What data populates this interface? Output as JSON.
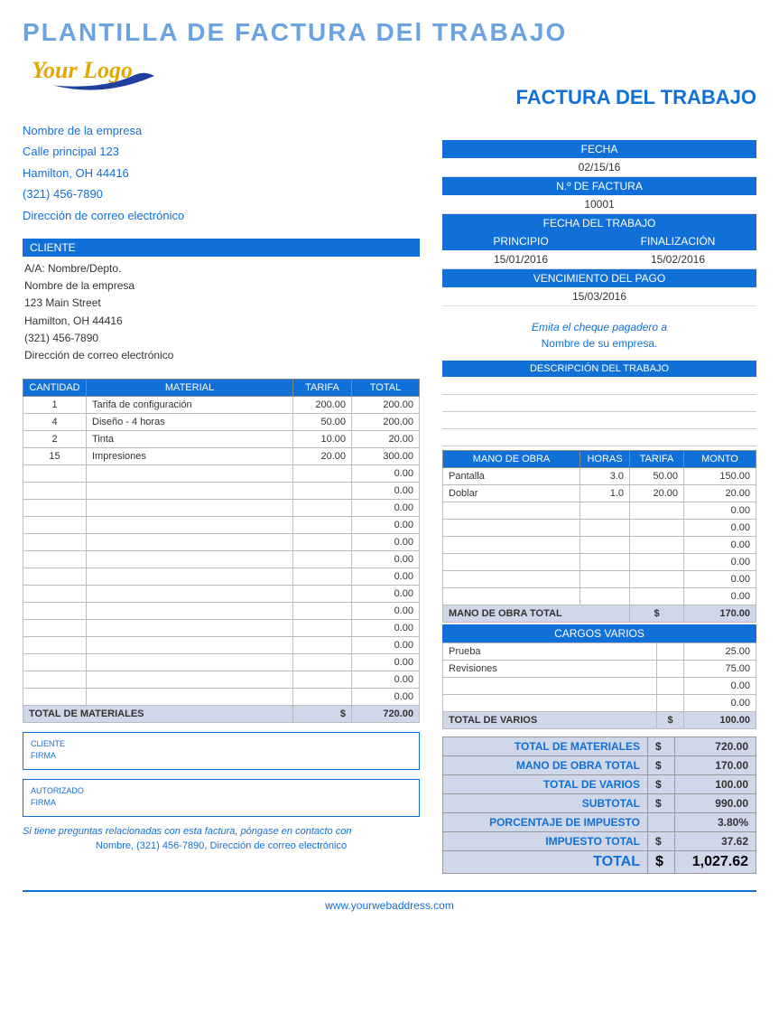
{
  "title": "PLANTILLA DE FACTURA DEl TRABAJO",
  "logo": "Your Logo",
  "invoiceHeading": "FACTURA DEL TRABAJO",
  "company": {
    "name": "Nombre de la empresa",
    "street": "Calle principal 123",
    "cityzip": "Hamilton, OH 44416",
    "phone": "(321) 456-7890",
    "email": "Dirección de correo electrónico"
  },
  "headers": {
    "cliente": "CLIENTE",
    "fecha": "FECHA",
    "nfactura": "N.º DE FACTURA",
    "fechaTrabajo": "FECHA DEL TRABAJO",
    "principio": "PRINCIPIO",
    "finalizacion": "FINALIZACIÓN",
    "vencimiento": "VENCIMIENTO DEL PAGO",
    "descTrabajo": "DESCRIPCIÓN DEL TRABAJO",
    "manoObra": "MANO DE OBRA",
    "horas": "HORAS",
    "tarifa": "TARIFA",
    "monto": "MONTO",
    "cargosVarios": "CARGOS VARIOS",
    "cantidad": "CANTIDAD",
    "material": "MATERIAL",
    "total": "TOTAL"
  },
  "meta": {
    "fecha": "02/15/16",
    "nfactura": "10001",
    "principio": "15/01/2016",
    "finalizacion": "15/02/2016",
    "vencimiento": "15/03/2016"
  },
  "client": {
    "attn": "A/A: Nombre/Depto.",
    "name": "Nombre de la empresa",
    "street": "123 Main Street",
    "cityzip": "Hamilton, OH 44416",
    "phone": "(321) 456-7890",
    "email": "Dirección de correo electrónico"
  },
  "checkNote": "Emita el cheque pagadero a",
  "checkName": "Nombre de su empresa.",
  "materials": [
    {
      "qty": "1",
      "desc": "Tarifa de configuración",
      "rate": "200.00",
      "total": "200.00"
    },
    {
      "qty": "4",
      "desc": "Diseño - 4 horas",
      "rate": "50.00",
      "total": "200.00"
    },
    {
      "qty": "2",
      "desc": "Tinta",
      "rate": "10.00",
      "total": "20.00"
    },
    {
      "qty": "15",
      "desc": "Impresiones",
      "rate": "20.00",
      "total": "300.00"
    }
  ],
  "materialsBlank": 14,
  "materialsTotalLabel": "TOTAL DE MATERIALES",
  "materialsTotal": "720.00",
  "labor": [
    {
      "desc": "Pantalla",
      "hrs": "3.0",
      "rate": "50.00",
      "amt": "150.00"
    },
    {
      "desc": "Doblar",
      "hrs": "1.0",
      "rate": "20.00",
      "amt": "20.00"
    }
  ],
  "laborBlank": 6,
  "laborTotalLabel": "MANO DE OBRA TOTAL",
  "laborTotal": "170.00",
  "misc": [
    {
      "desc": "Prueba",
      "amt": "25.00"
    },
    {
      "desc": "Revisiones",
      "amt": "75.00"
    }
  ],
  "miscBlank": 2,
  "miscTotalLabel": "TOTAL DE VARIOS",
  "miscTotal": "100.00",
  "summary": {
    "materials": {
      "label": "TOTAL DE MATERIALES",
      "amt": "720.00"
    },
    "labor": {
      "label": "MANO DE OBRA TOTAL",
      "amt": "170.00"
    },
    "misc": {
      "label": "TOTAL DE VARIOS",
      "amt": "100.00"
    },
    "subtotal": {
      "label": "SUBTOTAL",
      "amt": "990.00"
    },
    "taxrate": {
      "label": "PORCENTAJE DE IMPUESTO",
      "amt": "3.80%"
    },
    "tax": {
      "label": "IMPUESTO TOTAL",
      "amt": "37.62"
    },
    "total": {
      "label": "TOTAL",
      "amt": "1,027.62"
    }
  },
  "sig": {
    "clienteLbl": "CLIENTE",
    "firmaLbl": "FIRMA",
    "autorizadoLbl": "AUTORIZADO"
  },
  "contactNote": "Si tiene preguntas relacionadas con esta factura, póngase en contacto con",
  "contactInfo": "Nombre, (321) 456-7890, Dirección de correo electrónico",
  "footer": "www.yourwebaddress.com",
  "currency": "$",
  "colors": {
    "primary": "#1070d8",
    "accent": "#6aa3e0",
    "fill": "#d0d7e8"
  }
}
